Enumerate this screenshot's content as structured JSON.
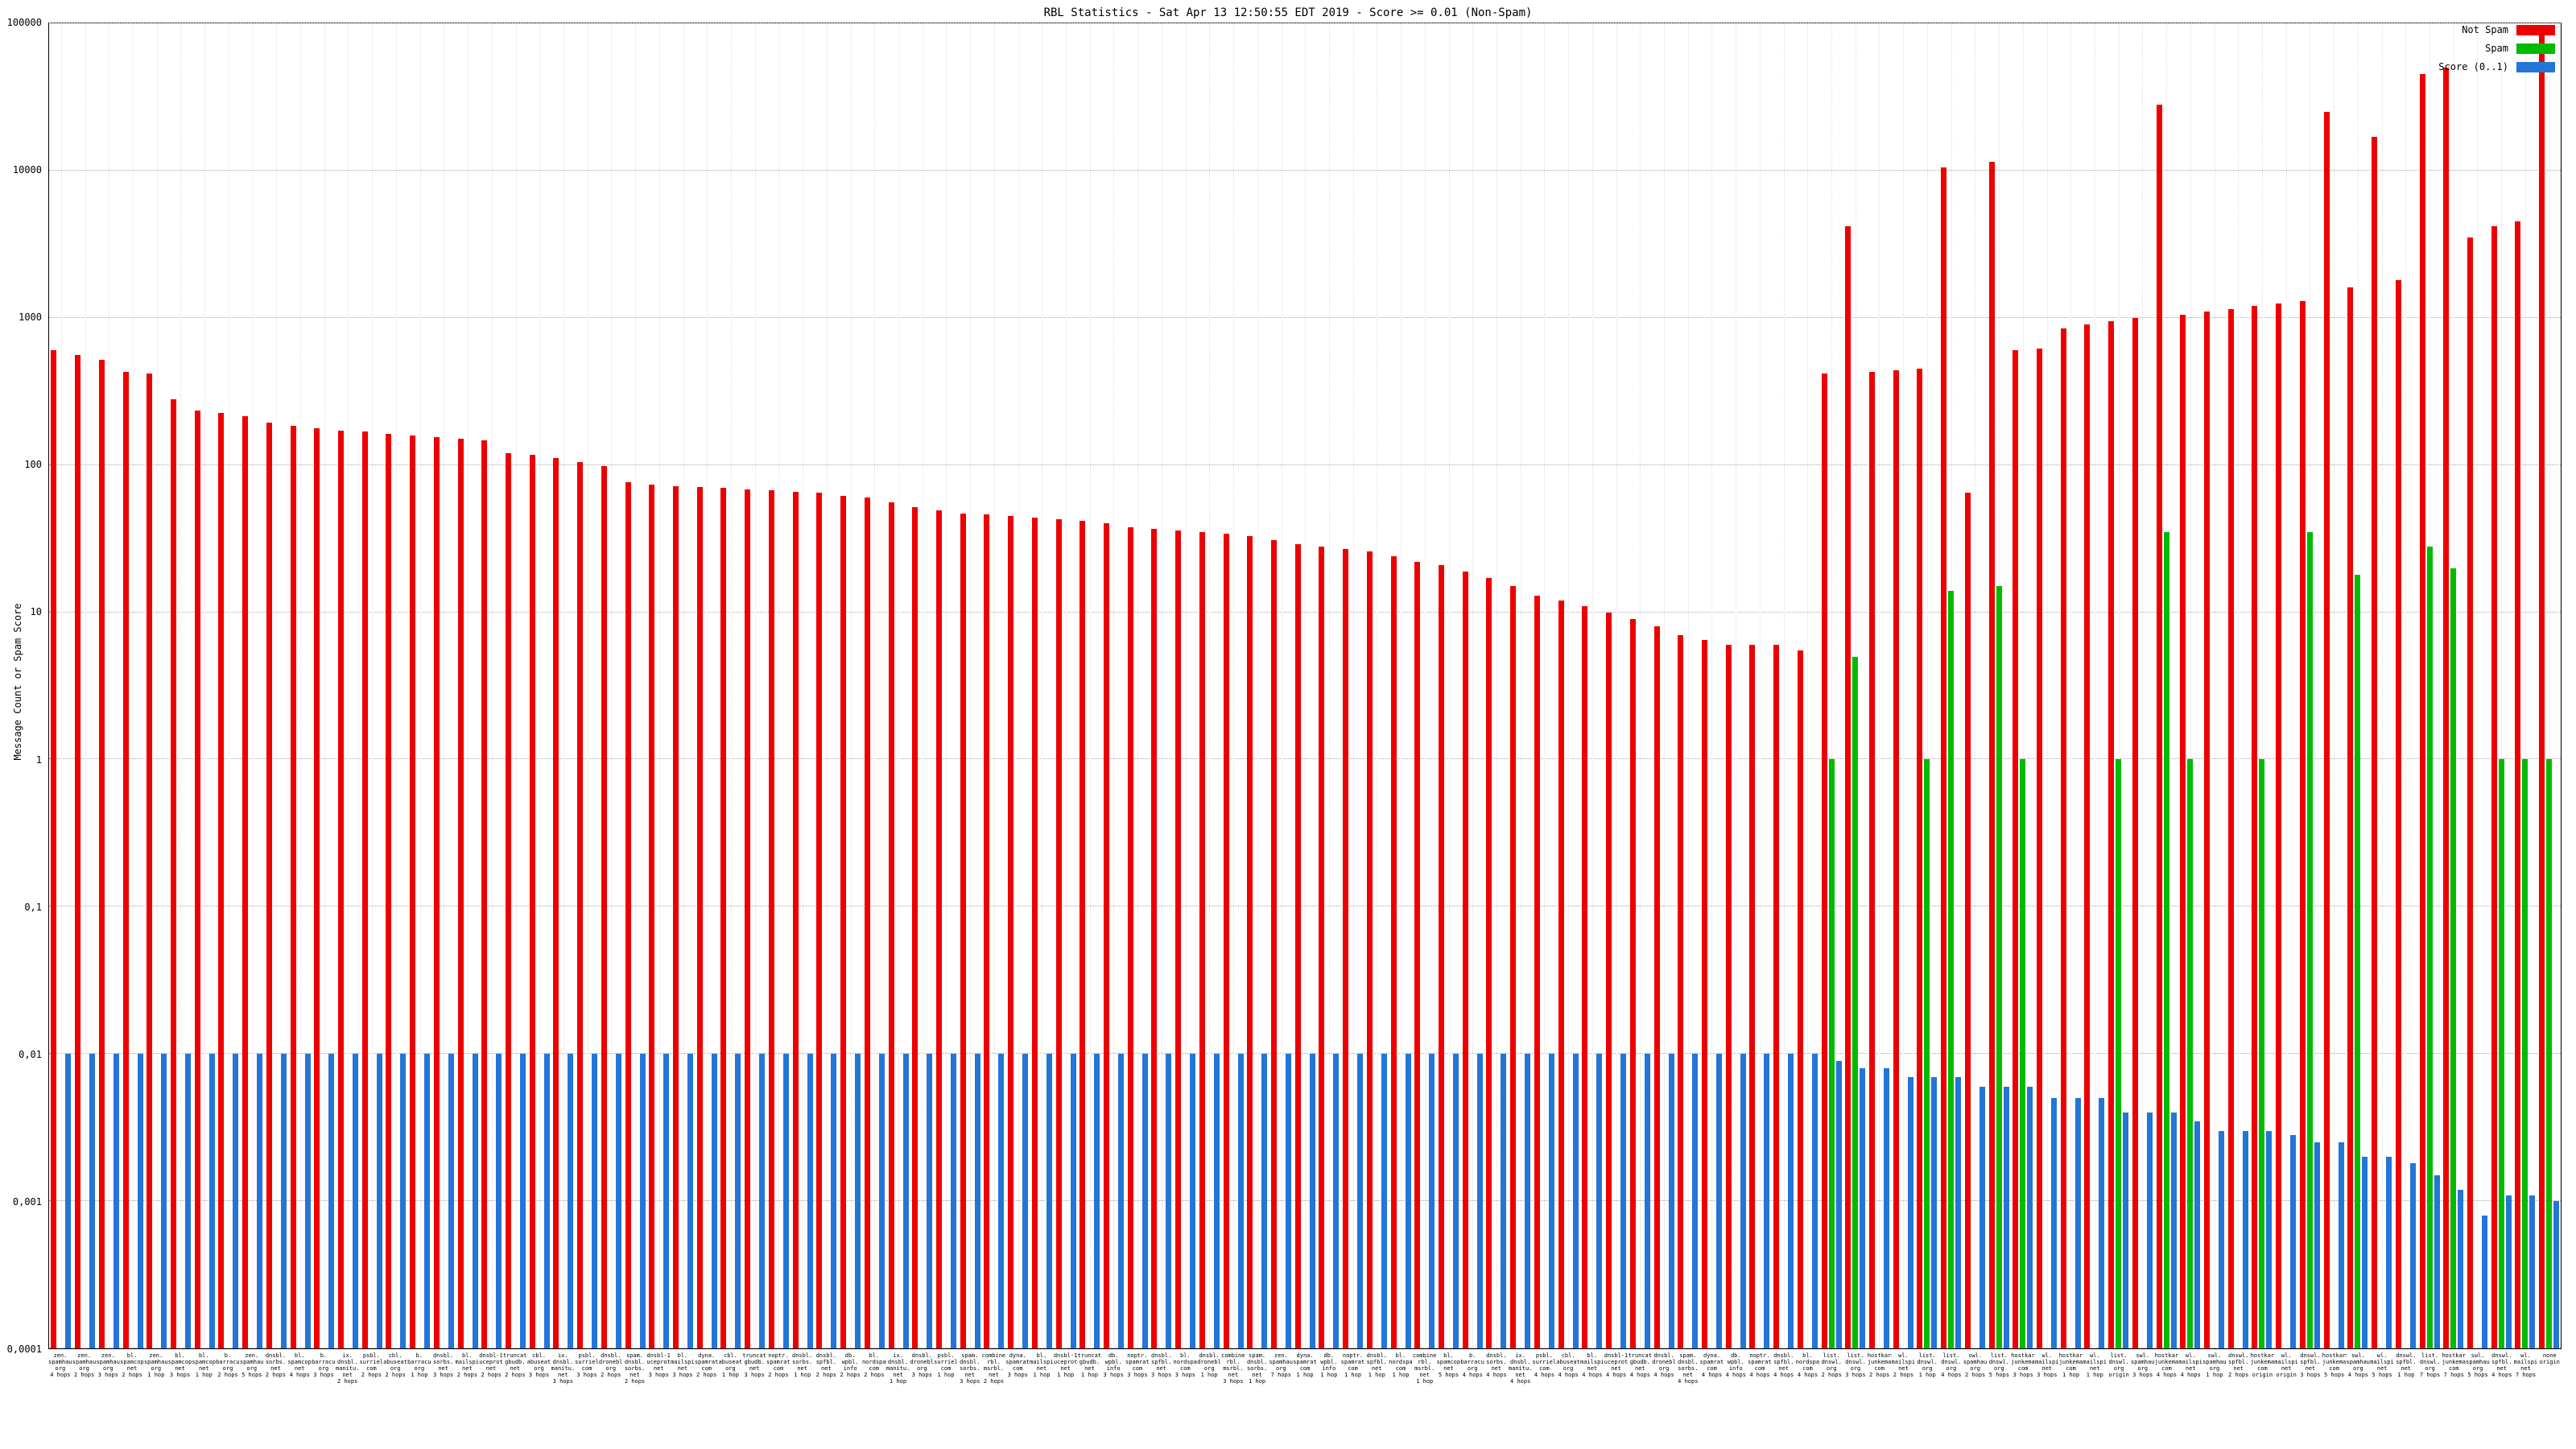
{
  "chart_data": {
    "type": "bar",
    "title": "RBL Statistics - Sat Apr 13 12:50:55 EDT 2019 - Score >= 0.01 (Non-Spam)",
    "ylabel": "Message Count or Spam Score",
    "xlabel": "",
    "y_scale": "log",
    "ylim": [
      0.0001,
      100000
    ],
    "grid": true,
    "legend_position": "top-right",
    "y_ticks": [
      {
        "value": 100000,
        "label": "100000"
      },
      {
        "value": 10000,
        "label": "10000"
      },
      {
        "value": 1000,
        "label": "1000"
      },
      {
        "value": 100,
        "label": "100"
      },
      {
        "value": 10,
        "label": "10"
      },
      {
        "value": 1,
        "label": "1"
      },
      {
        "value": 0.1,
        "label": "0,1"
      },
      {
        "value": 0.01,
        "label": "0,01"
      },
      {
        "value": 0.001,
        "label": "0,001"
      },
      {
        "value": 0.0001,
        "label": "0,0001"
      }
    ],
    "series": [
      {
        "name": "Not Spam",
        "color": "#ee0000",
        "values": [
          600,
          560,
          520,
          430,
          420,
          280,
          235,
          225,
          215,
          195,
          185,
          178,
          172,
          168,
          162,
          158,
          155,
          150,
          148,
          120,
          118,
          112,
          105,
          98,
          76,
          74,
          72,
          71,
          70,
          68,
          67,
          66,
          65,
          62,
          60,
          56,
          52,
          49,
          47,
          46,
          45,
          44,
          43,
          42,
          40,
          38,
          37,
          36,
          35,
          34,
          33,
          31,
          29,
          28,
          27,
          26,
          24,
          22,
          21,
          19,
          17,
          15,
          13,
          12,
          11,
          10,
          9,
          8,
          7,
          6.5,
          6,
          6,
          6,
          5.5,
          420,
          4200,
          430,
          440,
          450,
          10500,
          65,
          11500,
          600,
          620,
          850,
          900,
          950,
          1000,
          28000,
          1050,
          1100,
          1150,
          1200,
          1250,
          1300,
          25000,
          1600,
          17000,
          1800,
          45000,
          50000,
          3500,
          4200,
          4500,
          95000
        ]
      },
      {
        "name": "Spam",
        "color": "#00bb00",
        "values": [
          0,
          0,
          0,
          0,
          0,
          0,
          0,
          0,
          0,
          0,
          0,
          0,
          0,
          0,
          0,
          0,
          0,
          0,
          0,
          0,
          0,
          0,
          0,
          0,
          0,
          0,
          0,
          0,
          0,
          0,
          0,
          0,
          0,
          0,
          0,
          0,
          0,
          0,
          0,
          0,
          0,
          0,
          0,
          0,
          0,
          0,
          0,
          0,
          0,
          0,
          0,
          0,
          0,
          0,
          0,
          0,
          0,
          0,
          0,
          0,
          0,
          0,
          0,
          0,
          0,
          0,
          0,
          0,
          0,
          0,
          0,
          0,
          0,
          0,
          1,
          5,
          0,
          0,
          1,
          14,
          0,
          15,
          1,
          0,
          0,
          0,
          1,
          0,
          35,
          1,
          0,
          0,
          1,
          0,
          35,
          0,
          18,
          0,
          0,
          28,
          20,
          0,
          1,
          1,
          1
        ]
      },
      {
        "name": "Score (0..1)",
        "color": "#2475d8",
        "values": [
          0.01,
          0.01,
          0.01,
          0.01,
          0.01,
          0.01,
          0.01,
          0.01,
          0.01,
          0.01,
          0.01,
          0.01,
          0.01,
          0.01,
          0.01,
          0.01,
          0.01,
          0.01,
          0.01,
          0.01,
          0.01,
          0.01,
          0.01,
          0.01,
          0.01,
          0.01,
          0.01,
          0.01,
          0.01,
          0.01,
          0.01,
          0.01,
          0.01,
          0.01,
          0.01,
          0.01,
          0.01,
          0.01,
          0.01,
          0.01,
          0.01,
          0.01,
          0.01,
          0.01,
          0.01,
          0.01,
          0.01,
          0.01,
          0.01,
          0.01,
          0.01,
          0.01,
          0.01,
          0.01,
          0.01,
          0.01,
          0.01,
          0.01,
          0.01,
          0.01,
          0.01,
          0.01,
          0.01,
          0.01,
          0.01,
          0.01,
          0.01,
          0.01,
          0.01,
          0.01,
          0.01,
          0.01,
          0.01,
          0.01,
          0.009,
          0.008,
          0.008,
          0.007,
          0.007,
          0.007,
          0.006,
          0.006,
          0.006,
          0.005,
          0.005,
          0.005,
          0.004,
          0.004,
          0.004,
          0.0035,
          0.003,
          0.003,
          0.003,
          0.0028,
          0.0025,
          0.0025,
          0.002,
          0.002,
          0.0018,
          0.0015,
          0.0012,
          0.0008,
          0.0011,
          0.0011,
          0.001
        ]
      }
    ],
    "categories": [
      {
        "rbl": "zen.spamhaus.org",
        "hops": "4 hops"
      },
      {
        "rbl": "zen.spamhaus.org",
        "hops": "2 hops"
      },
      {
        "rbl": "zen.spamhaus.org",
        "hops": "3 hops"
      },
      {
        "rbl": "bl.spamcop.net",
        "hops": "2 hops"
      },
      {
        "rbl": "zen.spamhaus.org",
        "hops": "1 hop"
      },
      {
        "rbl": "bl.spamcop.net",
        "hops": "3 hops"
      },
      {
        "rbl": "bl.spamcop.net",
        "hops": "1 hop"
      },
      {
        "rbl": "b.barracudacentral.org",
        "hops": "2 hops"
      },
      {
        "rbl": "zen.spamhaus.org",
        "hops": "5 hops"
      },
      {
        "rbl": "dnsbl.sorbs.net",
        "hops": "2 hops"
      },
      {
        "rbl": "bl.spamcop.net",
        "hops": "4 hops"
      },
      {
        "rbl": "b.barracudacentral.org",
        "hops": "3 hops"
      },
      {
        "rbl": "ix.dnsbl.manitu.net",
        "hops": "2 hops"
      },
      {
        "rbl": "psbl.surriel.com",
        "hops": "2 hops"
      },
      {
        "rbl": "cbl.abuseat.org",
        "hops": "2 hops"
      },
      {
        "rbl": "b.barracudacentral.org",
        "hops": "1 hop"
      },
      {
        "rbl": "dnsbl.sorbs.net",
        "hops": "3 hops"
      },
      {
        "rbl": "bl.mailspike.net",
        "hops": "2 hops"
      },
      {
        "rbl": "dnsbl-1.uceprotect.net",
        "hops": "2 hops"
      },
      {
        "rbl": "truncate.gbudb.net",
        "hops": "2 hops"
      },
      {
        "rbl": "cbl.abuseat.org",
        "hops": "3 hops"
      },
      {
        "rbl": "ix.dnsbl.manitu.net",
        "hops": "3 hops"
      },
      {
        "rbl": "psbl.surriel.com",
        "hops": "3 hops"
      },
      {
        "rbl": "dnsbl.dronebl.org",
        "hops": "2 hops"
      },
      {
        "rbl": "spam.dnsbl.sorbs.net",
        "hops": "2 hops"
      },
      {
        "rbl": "dnsbl-1.uceprotect.net",
        "hops": "3 hops"
      },
      {
        "rbl": "bl.mailspike.net",
        "hops": "3 hops"
      },
      {
        "rbl": "dyna.spamrats.com",
        "hops": "2 hops"
      },
      {
        "rbl": "cbl.abuseat.org",
        "hops": "1 hop"
      },
      {
        "rbl": "truncate.gbudb.net",
        "hops": "3 hops"
      },
      {
        "rbl": "noptr.spamrats.com",
        "hops": "2 hops"
      },
      {
        "rbl": "dnsbl.sorbs.net",
        "hops": "1 hop"
      },
      {
        "rbl": "dnsbl.spfbl.net",
        "hops": "2 hops"
      },
      {
        "rbl": "db.wpbl.info",
        "hops": "2 hops"
      },
      {
        "rbl": "bl.nordspam.com",
        "hops": "2 hops"
      },
      {
        "rbl": "ix.dnsbl.manitu.net",
        "hops": "1 hop"
      },
      {
        "rbl": "dnsbl.dronebl.org",
        "hops": "3 hops"
      },
      {
        "rbl": "psbl.surriel.com",
        "hops": "1 hop"
      },
      {
        "rbl": "spam.dnsbl.sorbs.net",
        "hops": "3 hops"
      },
      {
        "rbl": "combined.rbl.msrbl.net",
        "hops": "2 hops"
      },
      {
        "rbl": "dyna.spamrats.com",
        "hops": "3 hops"
      },
      {
        "rbl": "bl.mailspike.net",
        "hops": "1 hop"
      },
      {
        "rbl": "dnsbl-1.uceprotect.net",
        "hops": "1 hop"
      },
      {
        "rbl": "truncate.gbudb.net",
        "hops": "1 hop"
      },
      {
        "rbl": "db.wpbl.info",
        "hops": "3 hops"
      },
      {
        "rbl": "noptr.spamrats.com",
        "hops": "3 hops"
      },
      {
        "rbl": "dnsbl.spfbl.net",
        "hops": "3 hops"
      },
      {
        "rbl": "bl.nordspam.com",
        "hops": "3 hops"
      },
      {
        "rbl": "dnsbl.dronebl.org",
        "hops": "1 hop"
      },
      {
        "rbl": "combined.rbl.msrbl.net",
        "hops": "3 hops"
      },
      {
        "rbl": "spam.dnsbl.sorbs.net",
        "hops": "1 hop"
      },
      {
        "rbl": "zen.spamhaus.org",
        "hops": "7 hops"
      },
      {
        "rbl": "dyna.spamrats.com",
        "hops": "1 hop"
      },
      {
        "rbl": "db.wpbl.info",
        "hops": "1 hop"
      },
      {
        "rbl": "noptr.spamrats.com",
        "hops": "1 hop"
      },
      {
        "rbl": "dnsbl.spfbl.net",
        "hops": "1 hop"
      },
      {
        "rbl": "bl.nordspam.com",
        "hops": "1 hop"
      },
      {
        "rbl": "combined.rbl.msrbl.net",
        "hops": "1 hop"
      },
      {
        "rbl": "bl.spamcop.net",
        "hops": "5 hops"
      },
      {
        "rbl": "b.barracudacentral.org",
        "hops": "4 hops"
      },
      {
        "rbl": "dnsbl.sorbs.net",
        "hops": "4 hops"
      },
      {
        "rbl": "ix.dnsbl.manitu.net",
        "hops": "4 hops"
      },
      {
        "rbl": "psbl.surriel.com",
        "hops": "4 hops"
      },
      {
        "rbl": "cbl.abuseat.org",
        "hops": "4 hops"
      },
      {
        "rbl": "bl.mailspike.net",
        "hops": "4 hops"
      },
      {
        "rbl": "dnsbl-1.uceprotect.net",
        "hops": "4 hops"
      },
      {
        "rbl": "truncate.gbudb.net",
        "hops": "4 hops"
      },
      {
        "rbl": "dnsbl.dronebl.org",
        "hops": "4 hops"
      },
      {
        "rbl": "spam.dnsbl.sorbs.net",
        "hops": "4 hops"
      },
      {
        "rbl": "dyna.spamrats.com",
        "hops": "4 hops"
      },
      {
        "rbl": "db.wpbl.info",
        "hops": "4 hops"
      },
      {
        "rbl": "noptr.spamrats.com",
        "hops": "4 hops"
      },
      {
        "rbl": "dnsbl.spfbl.net",
        "hops": "4 hops"
      },
      {
        "rbl": "bl.nordspam.com",
        "hops": "4 hops"
      },
      {
        "rbl": "list.dnswl.org",
        "hops": "2 hops"
      },
      {
        "rbl": "list.dnswl.org",
        "hops": "3 hops"
      },
      {
        "rbl": "hostkarma.junkemailfilter.com",
        "hops": "2 hops"
      },
      {
        "rbl": "wl.mailspike.net",
        "hops": "2 hops"
      },
      {
        "rbl": "list.dnswl.org",
        "hops": "1 hop"
      },
      {
        "rbl": "list.dnswl.org",
        "hops": "4 hops"
      },
      {
        "rbl": "swl.spamhaus.org",
        "hops": "2 hops"
      },
      {
        "rbl": "list.dnswl.org",
        "hops": "5 hops"
      },
      {
        "rbl": "hostkarma.junkemailfilter.com",
        "hops": "3 hops"
      },
      {
        "rbl": "wl.mailspike.net",
        "hops": "3 hops"
      },
      {
        "rbl": "hostkarma.junkemailfilter.com",
        "hops": "1 hop"
      },
      {
        "rbl": "wl.mailspike.net",
        "hops": "1 hop"
      },
      {
        "rbl": "list.dnswl.org",
        "hops": "origin"
      },
      {
        "rbl": "swl.spamhaus.org",
        "hops": "3 hops"
      },
      {
        "rbl": "hostkarma.junkemailfilter.com",
        "hops": "4 hops"
      },
      {
        "rbl": "wl.mailspike.net",
        "hops": "4 hops"
      },
      {
        "rbl": "swl.spamhaus.org",
        "hops": "1 hop"
      },
      {
        "rbl": "dnswl.spfbl.net",
        "hops": "2 hops"
      },
      {
        "rbl": "hostkarma.junkemailfilter.com",
        "hops": "origin"
      },
      {
        "rbl": "wl.mailspike.net",
        "hops": "origin"
      },
      {
        "rbl": "dnswl.spfbl.net",
        "hops": "3 hops"
      },
      {
        "rbl": "hostkarma.junkemailfilter.com",
        "hops": "5 hops"
      },
      {
        "rbl": "swl.spamhaus.org",
        "hops": "4 hops"
      },
      {
        "rbl": "wl.mailspike.net",
        "hops": "5 hops"
      },
      {
        "rbl": "dnswl.spfbl.net",
        "hops": "1 hop"
      },
      {
        "rbl": "list.dnswl.org",
        "hops": "7 hops"
      },
      {
        "rbl": "hostkarma.junkemailfilter.com",
        "hops": "7 hops"
      },
      {
        "rbl": "swl.spamhaus.org",
        "hops": "5 hops"
      },
      {
        "rbl": "dnswl.spfbl.net",
        "hops": "4 hops"
      },
      {
        "rbl": "wl.mailspike.net",
        "hops": "7 hops"
      },
      {
        "rbl": "none",
        "hops": "origin"
      }
    ]
  }
}
